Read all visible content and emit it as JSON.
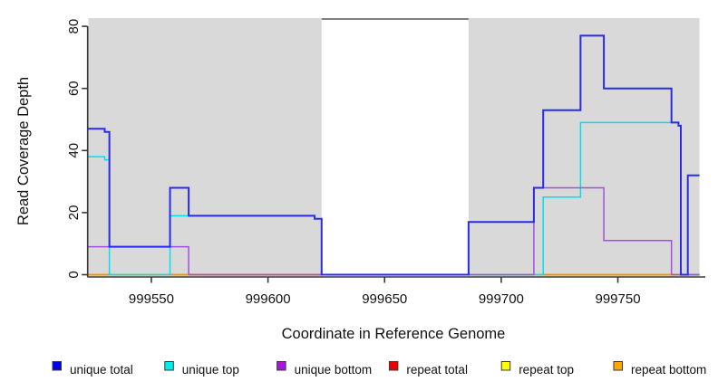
{
  "figure": {
    "xlabel": "Coordinate in Reference Genome",
    "ylabel": "Read Coverage Depth"
  },
  "chart_data": {
    "type": "line",
    "subtype": "step-coverage-depth",
    "title": "",
    "xlabel": "Coordinate in Reference Genome",
    "ylabel": "Read Coverage Depth",
    "xlim": [
      999523,
      999787.5
    ],
    "ylim": [
      0,
      80
    ],
    "x_ticks": [
      999550,
      999600,
      999650,
      999700,
      999750
    ],
    "y_ticks": [
      0,
      20,
      40,
      60,
      80
    ],
    "grid": false,
    "legend_position": "bottom",
    "background_regions": [
      {
        "x0": 999523,
        "x1": 999623,
        "color": "#D9D9D9"
      },
      {
        "x0": 999686,
        "x1": 999785,
        "color": "#D9D9D9"
      }
    ],
    "gap_top_border": {
      "x0": 999623,
      "x1": 999686,
      "color": "#7F7F7F"
    },
    "series": [
      {
        "name": "repeat total",
        "color": "#EE0000",
        "legend_color": "#EE0000",
        "width": 1.4,
        "segments": [
          [
            999523,
            999785,
            0
          ]
        ]
      },
      {
        "name": "repeat top",
        "color": "#FFFF00",
        "legend_color": "#FFFF00",
        "width": 1.4,
        "segments": [
          [
            999523,
            999785,
            0
          ]
        ]
      },
      {
        "name": "repeat bottom",
        "color": "#FFA500",
        "legend_color": "#FFA500",
        "width": 1.4,
        "segments": [
          [
            999523,
            999785,
            0
          ]
        ]
      },
      {
        "name": "unique top",
        "color": "#00E0EE",
        "legend_color": "#00EEEE",
        "width": 1.5,
        "segments": [
          [
            999523,
            999530,
            38
          ],
          [
            999530,
            999532,
            37
          ],
          [
            999532,
            999558,
            0
          ],
          [
            999558,
            999620,
            19
          ],
          [
            999620,
            999623,
            18
          ],
          [
            999623,
            999718,
            0
          ],
          [
            999718,
            999734,
            25
          ],
          [
            999734,
            999776,
            49
          ],
          [
            999776,
            999777,
            48
          ],
          [
            999777,
            999785,
            0
          ]
        ]
      },
      {
        "name": "unique bottom",
        "color": "#A44FE0",
        "legend_color": "#A717DB",
        "width": 1.5,
        "segments": [
          [
            999523,
            999566,
            9
          ],
          [
            999566,
            999714,
            0
          ],
          [
            999714,
            999744,
            28
          ],
          [
            999744,
            999773,
            11
          ],
          [
            999773,
            999785,
            0
          ]
        ]
      },
      {
        "name": "unique total",
        "color": "#2A2AEE",
        "legend_color": "#0000EE",
        "width": 2,
        "segments": [
          [
            999523,
            999530,
            47
          ],
          [
            999530,
            999532,
            46
          ],
          [
            999532,
            999558,
            9
          ],
          [
            999558,
            999566,
            28
          ],
          [
            999566,
            999620,
            19
          ],
          [
            999620,
            999623,
            18
          ],
          [
            999623,
            999686,
            0
          ],
          [
            999686,
            999714,
            17
          ],
          [
            999714,
            999718,
            28
          ],
          [
            999718,
            999734,
            53
          ],
          [
            999734,
            999744,
            77
          ],
          [
            999744,
            999773,
            60
          ],
          [
            999773,
            999776,
            49
          ],
          [
            999776,
            999777,
            48
          ],
          [
            999777,
            999780,
            0
          ],
          [
            999780,
            999785,
            32
          ]
        ]
      }
    ],
    "baseline_overlap_segments": [
      {
        "x0": 999523,
        "x1": 999532,
        "color": "#FF8F00"
      },
      {
        "x0": 999532,
        "x1": 999558,
        "color": "#99D79E"
      },
      {
        "x0": 999558,
        "x1": 999566,
        "color": "#FF8F00"
      },
      {
        "x0": 999566,
        "x1": 999623,
        "color": "#CE4578"
      },
      {
        "x0": 999686,
        "x1": 999718,
        "color": "#99D79E"
      },
      {
        "x0": 999718,
        "x1": 999777,
        "color": "#FF8F00"
      },
      {
        "x0": 999777,
        "x1": 999785,
        "color": "#CE4578"
      }
    ]
  },
  "legend": {
    "items": [
      {
        "label": "unique total",
        "color": "#0000EE"
      },
      {
        "label": "unique top",
        "color": "#00EEEE"
      },
      {
        "label": "unique bottom",
        "color": "#A717DB"
      },
      {
        "label": "repeat total",
        "color": "#EE0000"
      },
      {
        "label": "repeat top",
        "color": "#FFFF00"
      },
      {
        "label": "repeat bottom",
        "color": "#FFA500"
      }
    ]
  }
}
